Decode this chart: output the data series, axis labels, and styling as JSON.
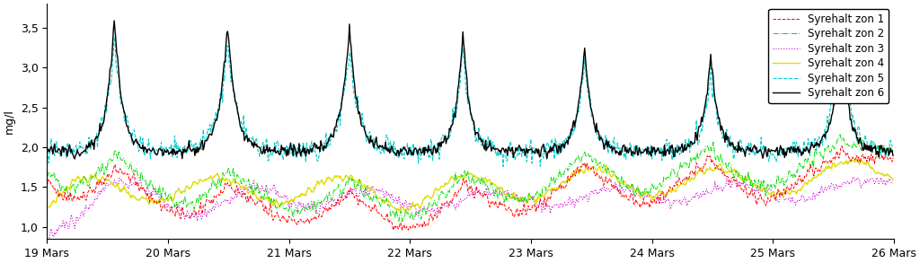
{
  "ylabel": "mg/l",
  "x_tick_labels": [
    "19 Mars",
    "20 Mars",
    "21 Mars",
    "22 Mars",
    "23 Mars",
    "24 Mars",
    "25 Mars",
    "26 Mars"
  ],
  "x_tick_positions": [
    0,
    144,
    288,
    432,
    576,
    720,
    864,
    1008
  ],
  "ylim": [
    0.85,
    3.8
  ],
  "yticks": [
    1.0,
    1.5,
    2.0,
    2.5,
    3.0,
    3.5
  ],
  "total_points": 1008,
  "series": {
    "zon1": {
      "color": "#ff0000",
      "linestyle": "dashed",
      "linewidth": 0.7,
      "label": "Syrehalt zon 1",
      "dashes": [
        4,
        2
      ]
    },
    "zon2": {
      "color": "#00dd00",
      "linestyle": "dashdot",
      "linewidth": 0.7,
      "label": "Syrehalt zon 2"
    },
    "zon3": {
      "color": "#cc00cc",
      "linestyle": "dotted",
      "linewidth": 0.8,
      "label": "Syrehalt zon 3"
    },
    "zon4": {
      "color": "#dddd00",
      "linestyle": "solid",
      "linewidth": 1.0,
      "label": "Syrehalt zon 4"
    },
    "zon5": {
      "color": "#00cccc",
      "linestyle": "dashed",
      "linewidth": 0.8,
      "label": "Syrehalt zon 5",
      "dashes": [
        6,
        2
      ]
    },
    "zon6": {
      "color": "#000000",
      "linestyle": "solid",
      "linewidth": 1.0,
      "label": "Syrehalt zon 6"
    }
  },
  "legend_loc": "upper right",
  "figsize": [
    10.24,
    2.93
  ],
  "dpi": 100
}
